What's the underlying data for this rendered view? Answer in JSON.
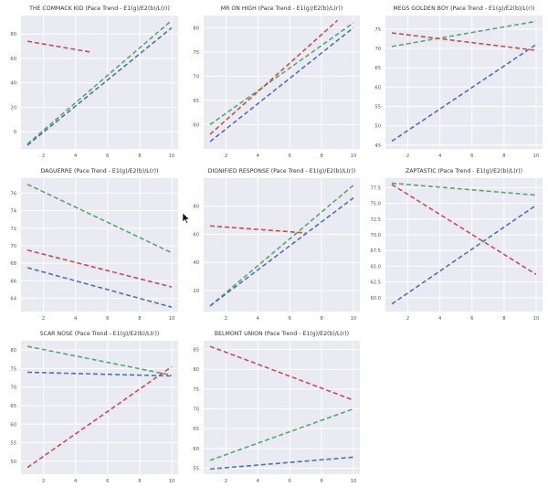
{
  "figure": {
    "colors": {
      "green": "#55a868",
      "blue": "#4c72b0",
      "red": "#c44e52",
      "background": "#eaeaf2",
      "grid": "#ffffff"
    },
    "legend_note": "E1(g)/E2(b)/L(r)"
  },
  "chart_data": [
    {
      "type": "line",
      "title": "THE COMMACK KID (Pace Trend - E1(g)/E2(b)/L(r))",
      "xlim": [
        0.6,
        10.4
      ],
      "ylim": [
        -14,
        95
      ],
      "xticks": [
        2,
        4,
        6,
        8,
        10
      ],
      "yticks": [
        0,
        20,
        40,
        60,
        80
      ],
      "grid": true,
      "series": [
        {
          "name": "E1",
          "color": "green",
          "x": [
            1,
            10
          ],
          "y": [
            -10,
            91
          ]
        },
        {
          "name": "E2",
          "color": "blue",
          "x": [
            1,
            10
          ],
          "y": [
            -11,
            85
          ]
        },
        {
          "name": "L",
          "color": "red",
          "x": [
            1,
            5
          ],
          "y": [
            74,
            65
          ]
        }
      ]
    },
    {
      "type": "line",
      "title": "MR ON HIGH (Pace Trend - E1(g)/E2(b)/L(r))",
      "xlim": [
        0.6,
        10.4
      ],
      "ylim": [
        55,
        82.5
      ],
      "xticks": [
        2,
        4,
        6,
        8,
        10
      ],
      "yticks": [
        60,
        65,
        70,
        75,
        80
      ],
      "grid": true,
      "series": [
        {
          "name": "E1",
          "color": "green",
          "x": [
            1,
            10
          ],
          "y": [
            60,
            81
          ]
        },
        {
          "name": "E2",
          "color": "blue",
          "x": [
            1,
            10
          ],
          "y": [
            56.5,
            80
          ]
        },
        {
          "name": "L",
          "color": "red",
          "x": [
            1,
            9
          ],
          "y": [
            58,
            81.5
          ]
        }
      ]
    },
    {
      "type": "line",
      "title": "MEGS GOLDEN BOY (Pace Trend - E1(g)/E2(b)/L(r))",
      "xlim": [
        0.6,
        10.4
      ],
      "ylim": [
        44,
        78.5
      ],
      "xticks": [
        2,
        4,
        6,
        8,
        10
      ],
      "yticks": [
        45,
        50,
        55,
        60,
        65,
        70,
        75
      ],
      "grid": true,
      "series": [
        {
          "name": "E1",
          "color": "green",
          "x": [
            1,
            10
          ],
          "y": [
            70.5,
            77
          ]
        },
        {
          "name": "E2",
          "color": "blue",
          "x": [
            1,
            10
          ],
          "y": [
            46,
            71
          ]
        },
        {
          "name": "L",
          "color": "red",
          "x": [
            1,
            10
          ],
          "y": [
            74,
            69.5
          ]
        }
      ]
    },
    {
      "type": "line",
      "title": "DAGUERRE (Pace Trend - E1(g)/E2(b)/L(r))",
      "xlim": [
        0.6,
        10.4
      ],
      "ylim": [
        62.5,
        77.7
      ],
      "xticks": [
        2,
        4,
        6,
        8,
        10
      ],
      "yticks": [
        64,
        66,
        68,
        70,
        72,
        74,
        76
      ],
      "grid": true,
      "series": [
        {
          "name": "E1",
          "color": "green",
          "x": [
            1,
            10
          ],
          "y": [
            77,
            69.2
          ]
        },
        {
          "name": "E2",
          "color": "blue",
          "x": [
            1,
            10
          ],
          "y": [
            67.5,
            63
          ]
        },
        {
          "name": "L",
          "color": "red",
          "x": [
            1,
            10
          ],
          "y": [
            69.5,
            65.3
          ]
        }
      ]
    },
    {
      "type": "line",
      "title": "DIGNIFIED RESPONSE (Pace Trend - E1(g)/E2(b)/L(r))",
      "xlim": [
        0.6,
        10.4
      ],
      "ylim": [
        5,
        100
      ],
      "xticks": [
        2,
        4,
        6,
        8,
        10
      ],
      "yticks": [
        20,
        40,
        60,
        80
      ],
      "grid": true,
      "series": [
        {
          "name": "E1",
          "color": "green",
          "x": [
            1,
            10
          ],
          "y": [
            9,
            95
          ]
        },
        {
          "name": "E2",
          "color": "blue",
          "x": [
            1,
            10
          ],
          "y": [
            9,
            86
          ]
        },
        {
          "name": "L",
          "color": "red",
          "x": [
            1,
            7
          ],
          "y": [
            66,
            61
          ]
        }
      ]
    },
    {
      "type": "line",
      "title": "ZAPTASTIC (Pace Trend - E1(g)/E2(b)/L(r))",
      "xlim": [
        0.6,
        10.4
      ],
      "ylim": [
        57.8,
        79
      ],
      "xticks": [
        2,
        4,
        6,
        8,
        10
      ],
      "yticks": [
        60.0,
        62.5,
        65.0,
        67.5,
        70.0,
        72.5,
        75.0,
        77.5
      ],
      "ytick_labels": [
        "60.0",
        "62.5",
        "65.0",
        "67.5",
        "70.0",
        "72.5",
        "75.0",
        "77.5"
      ],
      "grid": true,
      "series": [
        {
          "name": "E1",
          "color": "green",
          "x": [
            1,
            10
          ],
          "y": [
            78.2,
            76.3
          ]
        },
        {
          "name": "E2",
          "color": "blue",
          "x": [
            1,
            10
          ],
          "y": [
            59,
            74.7
          ]
        },
        {
          "name": "L",
          "color": "red",
          "x": [
            1,
            10
          ],
          "y": [
            78,
            63.7
          ]
        }
      ]
    },
    {
      "type": "line",
      "title": "SCAR NOSE (Pace Trend - E1(g)/E2(b)/L(r))",
      "xlim": [
        0.6,
        10.4
      ],
      "ylim": [
        46.5,
        82.5
      ],
      "xticks": [
        2,
        4,
        6,
        8,
        10
      ],
      "yticks": [
        50,
        55,
        60,
        65,
        70,
        75,
        80
      ],
      "grid": true,
      "series": [
        {
          "name": "E1",
          "color": "green",
          "x": [
            1,
            10
          ],
          "y": [
            81,
            73.2
          ]
        },
        {
          "name": "E2",
          "color": "blue",
          "x": [
            1,
            10
          ],
          "y": [
            74,
            73
          ]
        },
        {
          "name": "L",
          "color": "red",
          "x": [
            1,
            10
          ],
          "y": [
            48.3,
            75.5
          ]
        }
      ]
    },
    {
      "type": "line",
      "title": "BELMONT UNION (Pace Trend - E1(g)/E2(b)/L(r))",
      "xlim": [
        0.6,
        10.4
      ],
      "ylim": [
        53.5,
        87.2
      ],
      "xticks": [
        2,
        4,
        6,
        8,
        10
      ],
      "yticks": [
        55,
        60,
        65,
        70,
        75,
        80,
        85
      ],
      "grid": true,
      "series": [
        {
          "name": "E1",
          "color": "green",
          "x": [
            1,
            10
          ],
          "y": [
            57,
            70
          ]
        },
        {
          "name": "E2",
          "color": "blue",
          "x": [
            1,
            10
          ],
          "y": [
            54.8,
            57.8
          ]
        },
        {
          "name": "L",
          "color": "red",
          "x": [
            1,
            10
          ],
          "y": [
            85.8,
            72.2
          ]
        }
      ]
    }
  ]
}
